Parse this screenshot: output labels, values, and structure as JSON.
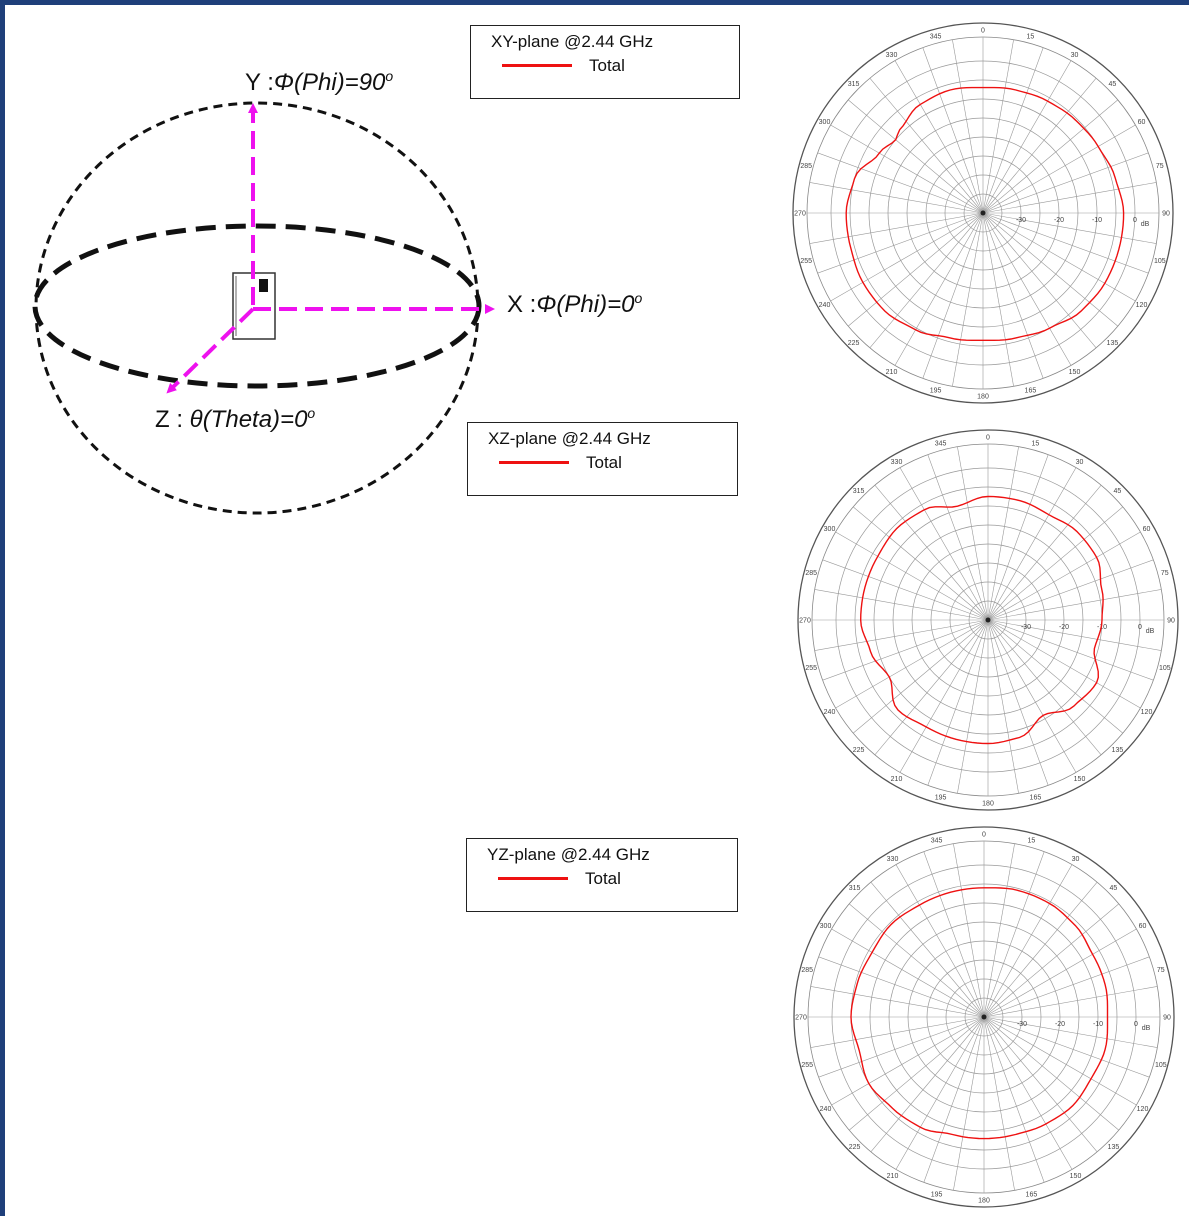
{
  "diagram": {
    "y_axis": {
      "prefix": "Y :",
      "name": "Φ(Phi)=90",
      "sup": "o"
    },
    "x_axis": {
      "prefix": "X :",
      "name": "Φ(Phi)=0",
      "sup": "o"
    },
    "z_axis": {
      "prefix": "Z : ",
      "name": "θ(Theta)=0",
      "sup": "o"
    },
    "arrow_color": "#ee11ee"
  },
  "chart_data": [
    {
      "type": "polar-line",
      "title": "XY-plane @2.44 GHz",
      "series": [
        {
          "name": "Total",
          "color": "#ee1111",
          "theta_deg": [
            0,
            15,
            30,
            45,
            60,
            75,
            90,
            105,
            120,
            135,
            150,
            165,
            180,
            195,
            210,
            225,
            240,
            255,
            270,
            285,
            300,
            310,
            315,
            330,
            345
          ],
          "r_db": [
            -7,
            -6.5,
            -6,
            -5.5,
            -5,
            -4,
            -3,
            -3,
            -3,
            -3.5,
            -5,
            -6,
            -6.5,
            -6,
            -4.5,
            -3.5,
            -3.5,
            -4,
            -4,
            -5,
            -8.5,
            -10,
            -9,
            -7,
            -6.5
          ]
        }
      ],
      "theta_ticks": [
        "0",
        "15",
        "30",
        "45",
        "60",
        "75",
        "90",
        "105",
        "120",
        "135",
        "150",
        "165",
        "180",
        "195",
        "210",
        "225",
        "240",
        "255",
        "270",
        "285",
        "300",
        "315",
        "330",
        "345"
      ],
      "radial_ticks": [
        "-30",
        "-20",
        "-10",
        "0"
      ],
      "radial_unit": "dB",
      "r_range": [
        -40,
        0
      ]
    },
    {
      "type": "polar-line",
      "title": "XZ-plane @2.44 GHz",
      "series": [
        {
          "name": "Total",
          "color": "#ee1111",
          "theta_deg": [
            0,
            15,
            30,
            45,
            60,
            75,
            90,
            105,
            120,
            135,
            150,
            165,
            180,
            195,
            210,
            225,
            240,
            255,
            270,
            285,
            300,
            315,
            330,
            345
          ],
          "r_db": [
            -7.5,
            -7.5,
            -8,
            -7,
            -7,
            -9,
            -10,
            -11,
            -7,
            -8,
            -11,
            -8,
            -7.5,
            -7.5,
            -7.5,
            -6.5,
            -10,
            -8,
            -6.5,
            -6.5,
            -6.5,
            -6,
            -6.5,
            -9
          ]
        }
      ],
      "theta_ticks": [
        "0",
        "15",
        "30",
        "45",
        "60",
        "75",
        "90",
        "105",
        "120",
        "135",
        "150",
        "165",
        "180",
        "195",
        "210",
        "225",
        "240",
        "255",
        "270",
        "285",
        "300",
        "315",
        "330",
        "345"
      ],
      "radial_ticks": [
        "-30",
        "-20",
        "-10",
        "0"
      ],
      "radial_unit": "dB",
      "r_range": [
        -40,
        0
      ]
    },
    {
      "type": "polar-line",
      "title": "YZ-plane @2.44 GHz",
      "series": [
        {
          "name": "Total",
          "color": "#ee1111",
          "theta_deg": [
            0,
            15,
            30,
            45,
            60,
            75,
            90,
            105,
            120,
            135,
            150,
            165,
            180,
            195,
            210,
            225,
            240,
            255,
            270,
            285,
            300,
            315,
            330,
            345
          ],
          "r_db": [
            -6,
            -5.5,
            -5.5,
            -6,
            -7,
            -7,
            -7.5,
            -7,
            -7.5,
            -7,
            -7.5,
            -8,
            -8,
            -8,
            -6.5,
            -6,
            -5,
            -6,
            -5,
            -5.5,
            -6,
            -5.5,
            -6,
            -6
          ]
        }
      ],
      "theta_ticks": [
        "0",
        "15",
        "30",
        "45",
        "60",
        "75",
        "90",
        "105",
        "120",
        "135",
        "150",
        "165",
        "180",
        "195",
        "210",
        "225",
        "240",
        "255",
        "270",
        "285",
        "300",
        "315",
        "330",
        "345"
      ],
      "radial_ticks": [
        "-30",
        "-20",
        "-10",
        "0"
      ],
      "radial_unit": "dB",
      "r_range": [
        -40,
        0
      ]
    }
  ]
}
